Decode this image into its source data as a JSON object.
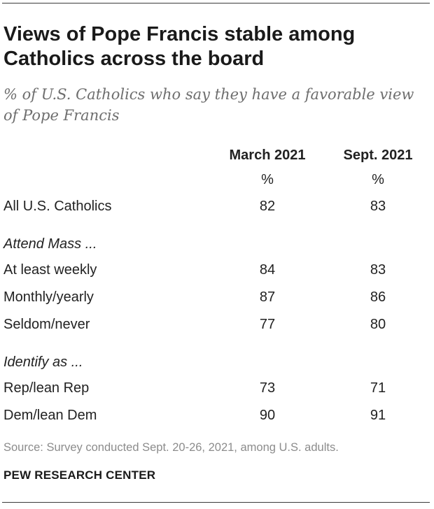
{
  "chart_data": {
    "type": "table",
    "title": "Views of Pope Francis stable among Catholics across the board",
    "subtitle": "% of U.S. Catholics who say they have a favorable view of Pope Francis",
    "columns": [
      "March 2021",
      "Sept. 2021"
    ],
    "units": [
      "%",
      "%"
    ],
    "rows": [
      {
        "label": "All U.S. Catholics",
        "values": [
          "82",
          "83"
        ]
      },
      {
        "label": "Attend Mass ...",
        "group_header": true
      },
      {
        "label": "At least weekly",
        "values": [
          "84",
          "83"
        ]
      },
      {
        "label": "Monthly/yearly",
        "values": [
          "87",
          "86"
        ]
      },
      {
        "label": "Seldom/never",
        "values": [
          "77",
          "80"
        ]
      },
      {
        "label": "Identify as ...",
        "group_header": true
      },
      {
        "label": "Rep/lean Rep",
        "values": [
          "73",
          "71"
        ]
      },
      {
        "label": "Dem/lean Dem",
        "values": [
          "90",
          "91"
        ]
      }
    ]
  },
  "footer": {
    "source": "Source: Survey conducted Sept. 20-26, 2021, among U.S. adults.",
    "brand": "PEW RESEARCH CENTER"
  },
  "colors": {
    "text": "#222222",
    "subtitle": "#6e6e6e",
    "source": "#8c8c8c",
    "rule": "#3a3a3a"
  }
}
